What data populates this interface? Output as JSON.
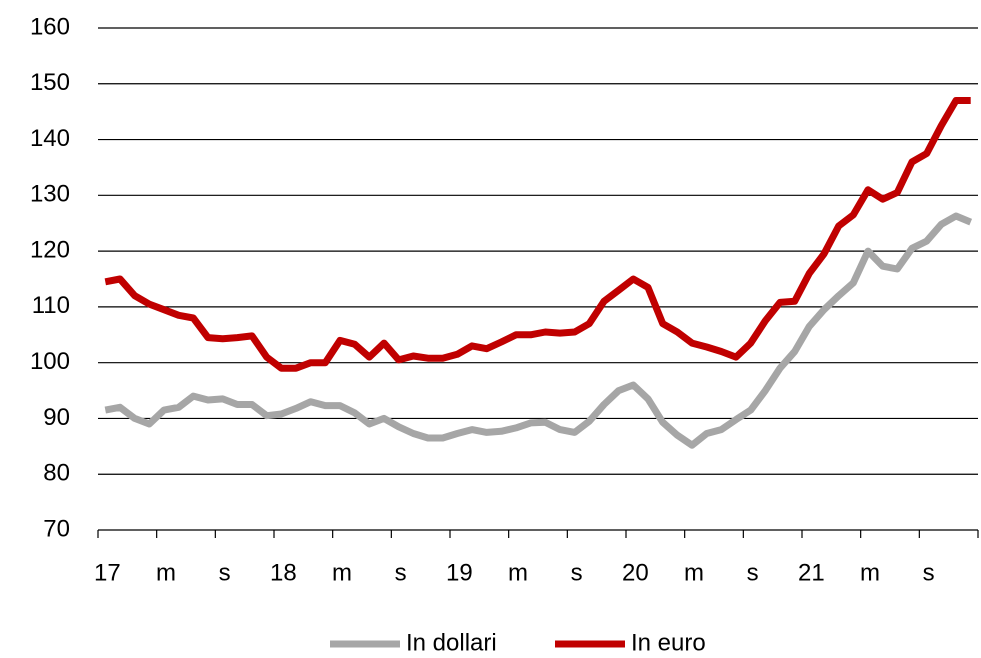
{
  "chart_data": {
    "type": "line",
    "categories": [
      "17",
      null,
      null,
      null,
      "m",
      null,
      null,
      null,
      "s",
      null,
      null,
      null,
      "18",
      null,
      null,
      null,
      "m",
      null,
      null,
      null,
      "s",
      null,
      null,
      null,
      "19",
      null,
      null,
      null,
      "m",
      null,
      null,
      null,
      "s",
      null,
      null,
      null,
      "20",
      null,
      null,
      null,
      "m",
      null,
      null,
      null,
      "s",
      null,
      null,
      null,
      "21",
      null,
      null,
      null,
      "m",
      null,
      null,
      null,
      "s",
      null,
      null,
      null
    ],
    "series": [
      {
        "name": "In dollari",
        "color": "#a6a6a6",
        "values": [
          91.5,
          92,
          90,
          89,
          91.5,
          92,
          94,
          93.3,
          93.5,
          92.5,
          92.5,
          90.5,
          90.8,
          91.8,
          93,
          92.3,
          92.3,
          91,
          89,
          90,
          88.5,
          87.3,
          86.5,
          86.5,
          87.3,
          88,
          87.5,
          87.7,
          88.3,
          89.2,
          89.3,
          88,
          87.5,
          89.5,
          92.5,
          95,
          96,
          93.5,
          89.3,
          87,
          85.2,
          87.3,
          88,
          89.8,
          91.5,
          95,
          99,
          102,
          106.5,
          109.5,
          112,
          114.3,
          120,
          117.3,
          116.8,
          120.5,
          121.8,
          124.8,
          126.3,
          125.2
        ]
      },
      {
        "name": "In euro",
        "color": "#c00000",
        "values": [
          114.5,
          115,
          112,
          110.5,
          109.5,
          108.5,
          108,
          104.5,
          104.3,
          104.5,
          104.8,
          101,
          99,
          99,
          100,
          100,
          104,
          103.3,
          101,
          103.5,
          100.5,
          101.2,
          100.8,
          100.8,
          101.5,
          103,
          102.5,
          103.7,
          105,
          105,
          105.5,
          105.3,
          105.5,
          107,
          111,
          113,
          115,
          113.5,
          107,
          105.5,
          103.5,
          102.8,
          102,
          101,
          103.5,
          107.5,
          110.8,
          111,
          116,
          119.5,
          124.5,
          126.5,
          131,
          129.3,
          130.5,
          136,
          137.5,
          142.5,
          147,
          147
        ]
      }
    ],
    "ylim": [
      70,
      160
    ],
    "yticks": [
      70,
      80,
      90,
      100,
      110,
      120,
      130,
      140,
      150,
      160
    ],
    "grid": true,
    "legend": "bottom"
  }
}
